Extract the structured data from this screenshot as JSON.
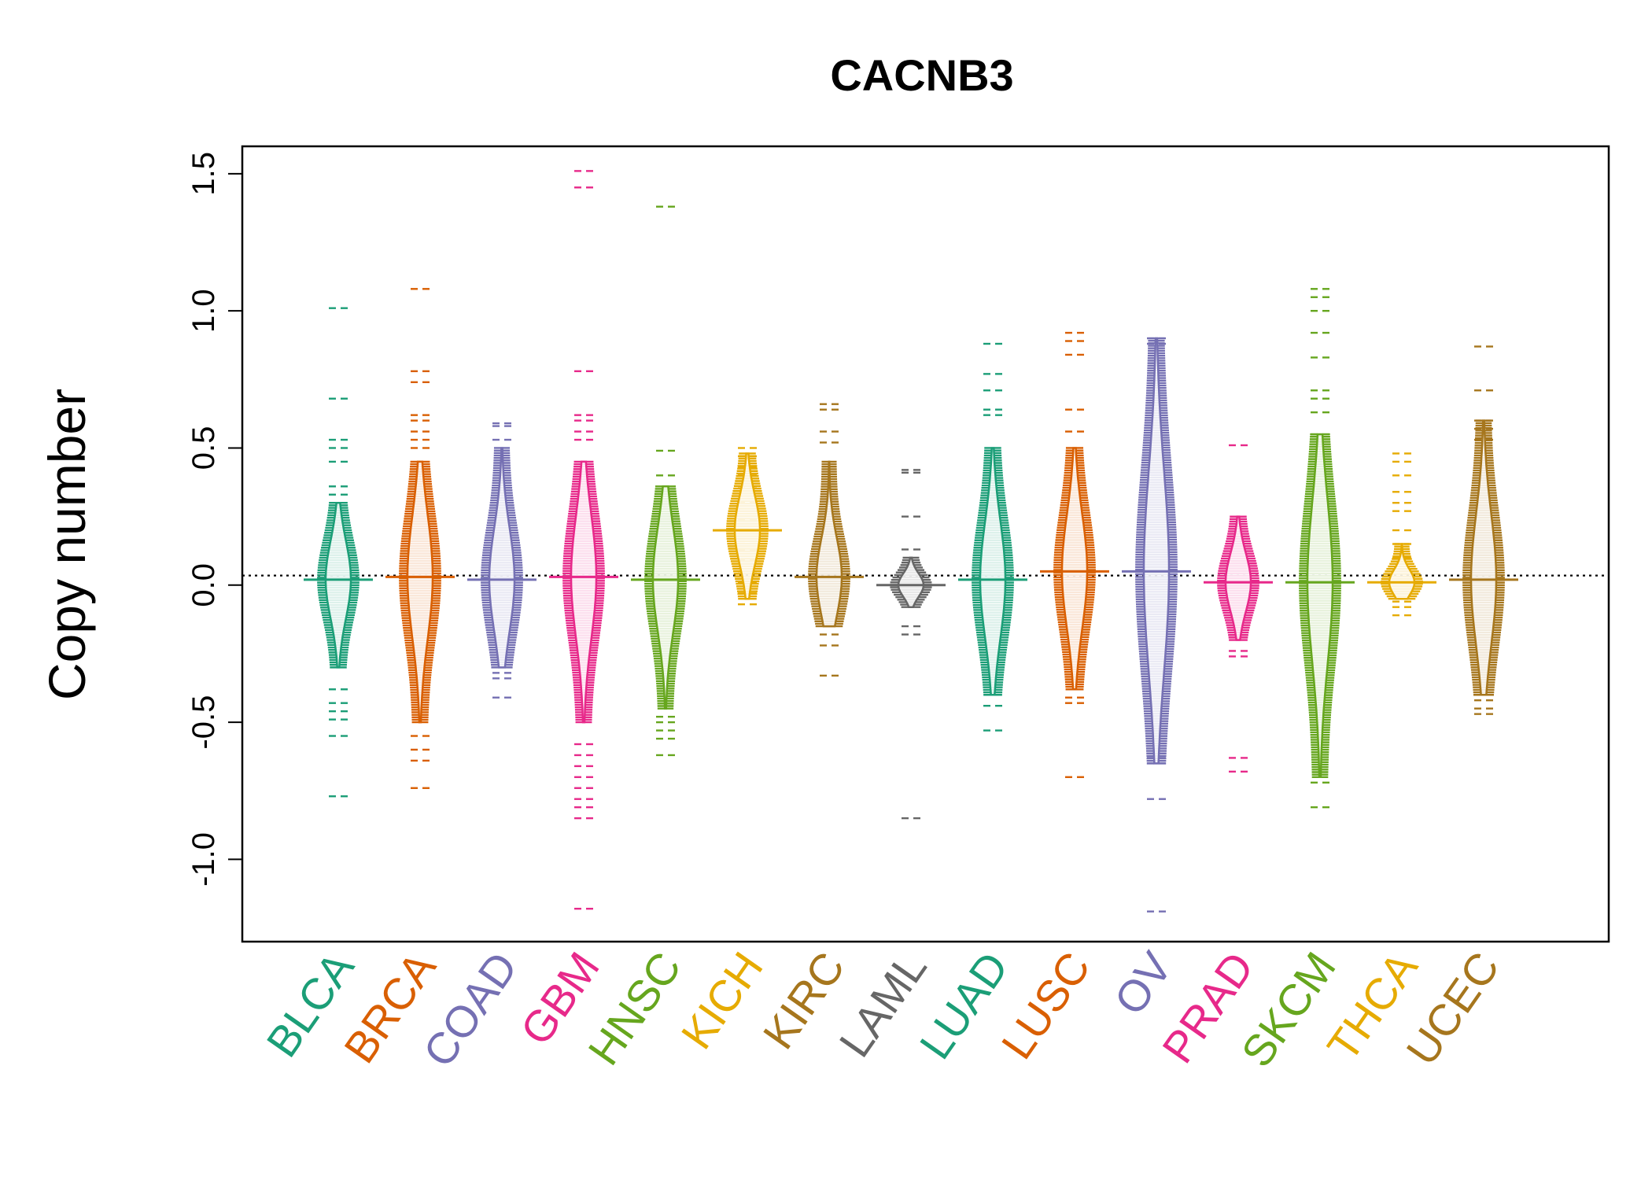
{
  "chart_data": {
    "type": "beanplot",
    "title": "CACNB3",
    "xlabel": "",
    "ylabel": "Copy number",
    "ylim": [
      -1.3,
      1.6
    ],
    "yticks": [
      "-1.0",
      "-0.5",
      "0.0",
      "0.5",
      "1.0",
      "1.5"
    ],
    "reference_line": 0.035,
    "grid": false,
    "legend": "none",
    "categories": [
      "BLCA",
      "BRCA",
      "COAD",
      "GBM",
      "HNSC",
      "KICH",
      "KIRC",
      "LAML",
      "LUAD",
      "LUSC",
      "OV",
      "PRAD",
      "SKCM",
      "THCA",
      "UCEC"
    ],
    "colors": [
      "#1B9E77",
      "#D95F02",
      "#7570B3",
      "#E7298A",
      "#66A61E",
      "#E6AB02",
      "#A6761D",
      "#666666",
      "#1B9E77",
      "#D95F02",
      "#7570B3",
      "#E7298A",
      "#66A61E",
      "#E6AB02",
      "#A6761D"
    ],
    "series": [
      {
        "name": "BLCA",
        "median": 0.02,
        "min": -0.77,
        "max": 1.01,
        "core": [
          -0.3,
          0.3
        ],
        "outliers": [
          1.01,
          0.68,
          0.53,
          0.5,
          0.45,
          0.36,
          0.33,
          -0.38,
          -0.43,
          -0.46,
          -0.49,
          -0.55,
          -0.77
        ]
      },
      {
        "name": "BRCA",
        "median": 0.03,
        "min": -0.74,
        "max": 1.08,
        "core": [
          -0.5,
          0.45
        ],
        "outliers": [
          1.08,
          0.78,
          0.74,
          0.62,
          0.6,
          0.56,
          0.53,
          0.5,
          -0.55,
          -0.6,
          -0.64,
          -0.74
        ]
      },
      {
        "name": "COAD",
        "median": 0.02,
        "min": -0.41,
        "max": 0.59,
        "core": [
          -0.3,
          0.5
        ],
        "outliers": [
          0.59,
          0.58,
          0.53,
          -0.32,
          -0.34,
          -0.41
        ]
      },
      {
        "name": "GBM",
        "median": 0.03,
        "min": -1.18,
        "max": 1.51,
        "core": [
          -0.5,
          0.45
        ],
        "outliers": [
          1.51,
          1.45,
          0.78,
          0.62,
          0.6,
          0.56,
          0.53,
          -0.58,
          -0.62,
          -0.66,
          -0.7,
          -0.74,
          -0.78,
          -0.81,
          -0.85,
          -1.18
        ]
      },
      {
        "name": "HNSC",
        "median": 0.02,
        "min": -0.62,
        "max": 1.38,
        "core": [
          -0.45,
          0.36
        ],
        "outliers": [
          1.38,
          0.49,
          0.4,
          -0.48,
          -0.5,
          -0.53,
          -0.56,
          -0.62
        ]
      },
      {
        "name": "KICH",
        "median": 0.2,
        "min": -0.07,
        "max": 0.5,
        "core": [
          -0.05,
          0.48
        ],
        "outliers": [
          0.5,
          0.47,
          0.43,
          0.4,
          0.36,
          0.3,
          0.24,
          0.2,
          0.16,
          0.13,
          0.09,
          0.05,
          0.01,
          -0.03,
          -0.07
        ]
      },
      {
        "name": "KIRC",
        "median": 0.03,
        "min": -0.33,
        "max": 0.66,
        "core": [
          -0.15,
          0.45
        ],
        "outliers": [
          0.66,
          0.64,
          0.56,
          0.52,
          -0.18,
          -0.22,
          -0.33
        ]
      },
      {
        "name": "LAML",
        "median": 0.0,
        "min": -0.85,
        "max": 0.42,
        "core": [
          -0.08,
          0.1
        ],
        "outliers": [
          0.42,
          0.41,
          0.25,
          0.13,
          -0.15,
          -0.18,
          -0.85
        ]
      },
      {
        "name": "LUAD",
        "median": 0.02,
        "min": -0.53,
        "max": 0.88,
        "core": [
          -0.4,
          0.5
        ],
        "outliers": [
          0.88,
          0.77,
          0.71,
          0.64,
          0.62,
          -0.44,
          -0.53
        ]
      },
      {
        "name": "LUSC",
        "median": 0.05,
        "min": -0.7,
        "max": 0.92,
        "core": [
          -0.38,
          0.5
        ],
        "outliers": [
          0.92,
          0.89,
          0.84,
          0.64,
          0.56,
          -0.41,
          -0.43,
          -0.7
        ]
      },
      {
        "name": "OV",
        "median": 0.05,
        "min": -1.19,
        "max": 0.9,
        "core": [
          -0.65,
          0.9
        ],
        "outliers": [
          0.9,
          0.88,
          -0.63,
          -0.65,
          -0.78,
          -1.19
        ]
      },
      {
        "name": "PRAD",
        "median": 0.01,
        "min": -0.68,
        "max": 0.51,
        "core": [
          -0.2,
          0.25
        ],
        "outliers": [
          0.51,
          -0.24,
          -0.26,
          -0.63,
          -0.68
        ]
      },
      {
        "name": "SKCM",
        "median": 0.01,
        "min": -0.81,
        "max": 1.08,
        "core": [
          -0.7,
          0.55
        ],
        "outliers": [
          1.08,
          1.05,
          1.0,
          0.92,
          0.83,
          0.71,
          0.68,
          0.63,
          0.55,
          -0.72,
          -0.81
        ]
      },
      {
        "name": "THCA",
        "median": 0.01,
        "min": -0.11,
        "max": 0.48,
        "core": [
          -0.05,
          0.15
        ],
        "outliers": [
          0.48,
          0.45,
          0.4,
          0.34,
          0.3,
          0.27,
          0.2,
          0.15,
          0.1,
          -0.06,
          -0.08,
          -0.11
        ]
      },
      {
        "name": "UCEC",
        "median": 0.02,
        "min": -0.47,
        "max": 0.87,
        "core": [
          -0.4,
          0.6
        ],
        "outliers": [
          0.87,
          0.71,
          0.6,
          0.57,
          0.53,
          -0.42,
          -0.45,
          -0.47
        ]
      }
    ]
  }
}
